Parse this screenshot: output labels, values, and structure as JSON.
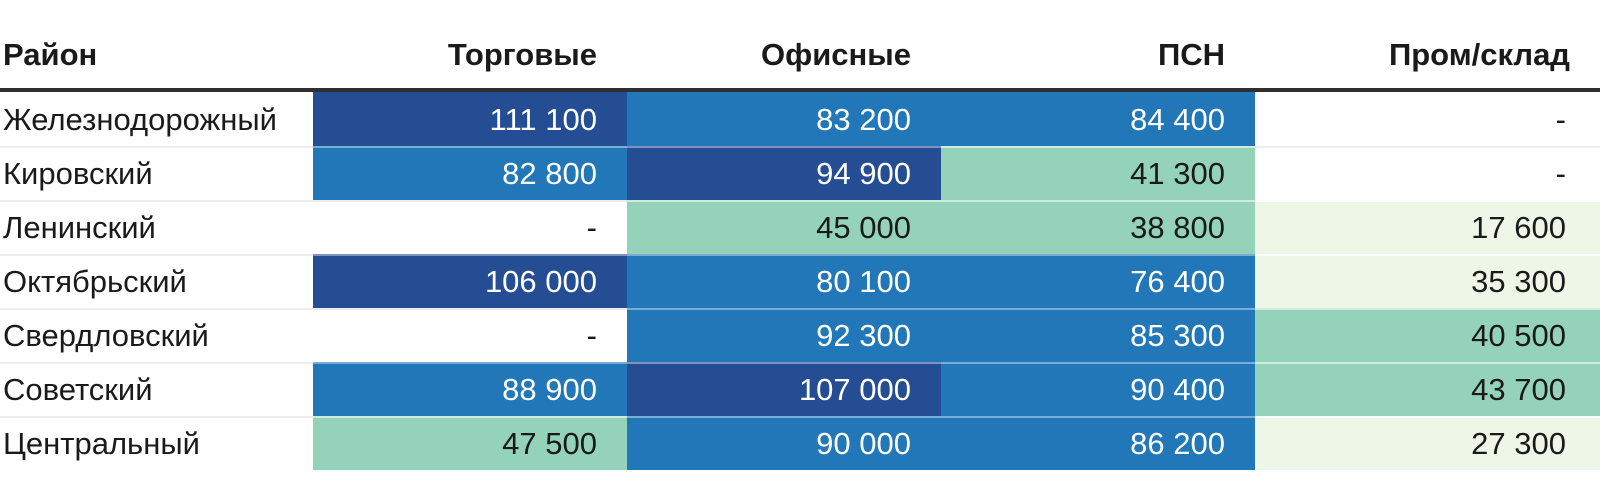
{
  "palette": {
    "level_high": "#254d94",
    "level_mid": "#2177b8",
    "level_low": "#94d3ba",
    "level_lowest": "#edf6e7",
    "level_none": "#ffffff",
    "text_on_dark": "#ffffff",
    "text_on_light": "#1a1a1a",
    "header_rule": "#2f2f2f"
  },
  "table": {
    "columns": [
      "Район",
      "Торговые",
      "Офисные",
      "ПСН",
      "Пром/склад"
    ],
    "rows": [
      {
        "label": "Железнодорожный",
        "cells": [
          {
            "text": "111 100",
            "level": "high"
          },
          {
            "text": "83 200",
            "level": "mid"
          },
          {
            "text": "84 400",
            "level": "mid"
          },
          {
            "text": "-",
            "level": "none"
          }
        ]
      },
      {
        "label": "Кировский",
        "cells": [
          {
            "text": "82 800",
            "level": "mid"
          },
          {
            "text": "94 900",
            "level": "high"
          },
          {
            "text": "41 300",
            "level": "low"
          },
          {
            "text": "-",
            "level": "none"
          }
        ]
      },
      {
        "label": "Ленинский",
        "cells": [
          {
            "text": "-",
            "level": "none"
          },
          {
            "text": "45 000",
            "level": "low"
          },
          {
            "text": "38 800",
            "level": "low"
          },
          {
            "text": "17 600",
            "level": "lowest"
          }
        ]
      },
      {
        "label": "Октябрьский",
        "cells": [
          {
            "text": "106 000",
            "level": "high"
          },
          {
            "text": "80 100",
            "level": "mid"
          },
          {
            "text": "76 400",
            "level": "mid"
          },
          {
            "text": "35 300",
            "level": "lowest"
          }
        ]
      },
      {
        "label": "Свердловский",
        "cells": [
          {
            "text": "-",
            "level": "none"
          },
          {
            "text": "92 300",
            "level": "mid"
          },
          {
            "text": "85 300",
            "level": "mid"
          },
          {
            "text": "40 500",
            "level": "low"
          }
        ]
      },
      {
        "label": "Советский",
        "cells": [
          {
            "text": "88 900",
            "level": "mid"
          },
          {
            "text": "107 000",
            "level": "high"
          },
          {
            "text": "90 400",
            "level": "mid"
          },
          {
            "text": "43 700",
            "level": "low"
          }
        ]
      },
      {
        "label": "Центральный",
        "cells": [
          {
            "text": "47 500",
            "level": "low"
          },
          {
            "text": "90 000",
            "level": "mid"
          },
          {
            "text": "86 200",
            "level": "mid"
          },
          {
            "text": "27 300",
            "level": "lowest"
          }
        ]
      }
    ]
  },
  "chart_data": {
    "type": "heatmap",
    "row_header": "Район",
    "rows": [
      "Железнодорожный",
      "Кировский",
      "Ленинский",
      "Октябрьский",
      "Свердловский",
      "Советский",
      "Центральный"
    ],
    "columns": [
      "Торговые",
      "Офисные",
      "ПСН",
      "Пром/склад"
    ],
    "values": [
      [
        111100,
        83200,
        84400,
        null
      ],
      [
        82800,
        94900,
        41300,
        null
      ],
      [
        null,
        45000,
        38800,
        17600
      ],
      [
        106000,
        80100,
        76400,
        35300
      ],
      [
        null,
        92300,
        85300,
        40500
      ],
      [
        88900,
        107000,
        90400,
        43700
      ],
      [
        47500,
        90000,
        86200,
        27300
      ]
    ],
    "color_scale": {
      "high": "#254d94",
      "mid": "#2177b8",
      "low": "#94d3ba",
      "lowest": "#edf6e7",
      "missing": "#ffffff"
    },
    "legend": "none",
    "grid": "off"
  }
}
